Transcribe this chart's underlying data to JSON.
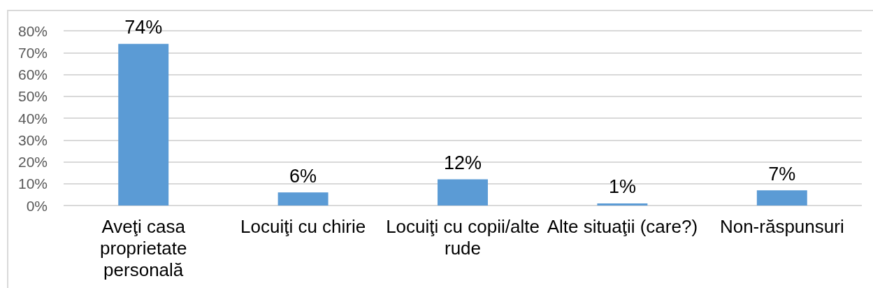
{
  "chart_data": {
    "type": "bar",
    "categories": [
      "Aveţi casa proprietate personală",
      "Locuiţi cu chirie",
      "Locuiţi cu copii/alte rude",
      "Alte situaţii (care?)",
      "Non-răspunsuri"
    ],
    "values": [
      74,
      6,
      12,
      1,
      7
    ],
    "color": "#5b9bd5",
    "value_labels": [
      "74%",
      "6%",
      "12%",
      "1%",
      "7%"
    ],
    "ylim": [
      0,
      80
    ],
    "yticks": [
      {
        "value": 0,
        "label": "0%"
      },
      {
        "value": 10,
        "label": "10%"
      },
      {
        "value": 20,
        "label": "20%"
      },
      {
        "value": 30,
        "label": "30%"
      },
      {
        "value": 40,
        "label": "40%"
      },
      {
        "value": 50,
        "label": "50%"
      },
      {
        "value": 60,
        "label": "60%"
      },
      {
        "value": 70,
        "label": "70%"
      },
      {
        "value": 80,
        "label": "80%"
      }
    ],
    "grid": "y"
  }
}
